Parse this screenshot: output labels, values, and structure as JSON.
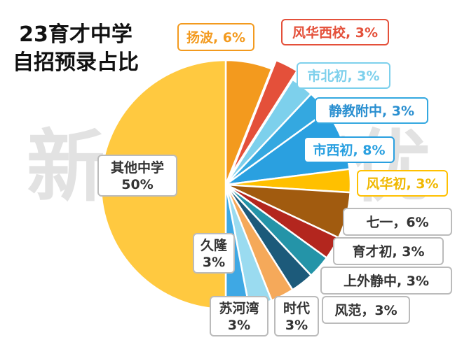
{
  "title_line1": "23育才中学",
  "title_line2": "自招预录占比",
  "watermark": "新王牌培优",
  "chart_data": {
    "type": "pie",
    "title": "23育才中学自招预录占比",
    "slices": [
      {
        "name": "扬波",
        "value": 6,
        "label": "扬波, 6%",
        "color": "#F39A1E"
      },
      {
        "name": "风华西校",
        "value": 3,
        "label": "风华西校, 3%",
        "color": "#E4503A"
      },
      {
        "name": "市北初",
        "value": 3,
        "label": "市北初, 3%",
        "color": "#7DD0EC"
      },
      {
        "name": "静教附中",
        "value": 3,
        "label": "静教附中, 3%",
        "color": "#34A8E0"
      },
      {
        "name": "市西初",
        "value": 8,
        "label": "市西初, 8%",
        "color": "#2AA0E0"
      },
      {
        "name": "风华初",
        "value": 3,
        "label": "风华初, 3%",
        "color": "#FFC000"
      },
      {
        "name": "七一",
        "value": 6,
        "label": "七一，6%",
        "color": "#A15B0F"
      },
      {
        "name": "育才初",
        "value": 3,
        "label": "育才初, 3%",
        "color": "#B3261E"
      },
      {
        "name": "上外静中",
        "value": 3,
        "label": "上外静中, 3%",
        "color": "#2494A8"
      },
      {
        "name": "风范",
        "value": 3,
        "label": "风范，3%",
        "color": "#1C5A7A"
      },
      {
        "name": "时代",
        "value": 3,
        "label": "时代 3%",
        "color": "#F5A95A"
      },
      {
        "name": "苏河湾",
        "value": 3,
        "label": "苏河湾 3%",
        "color": "#9ADBF0"
      },
      {
        "name": "久隆",
        "value": 3,
        "label": "久隆 3%",
        "color": "#3EA8E4"
      },
      {
        "name": "其他中学",
        "value": 50,
        "label": "其他中学 50%",
        "color": "#FFC940"
      }
    ]
  }
}
